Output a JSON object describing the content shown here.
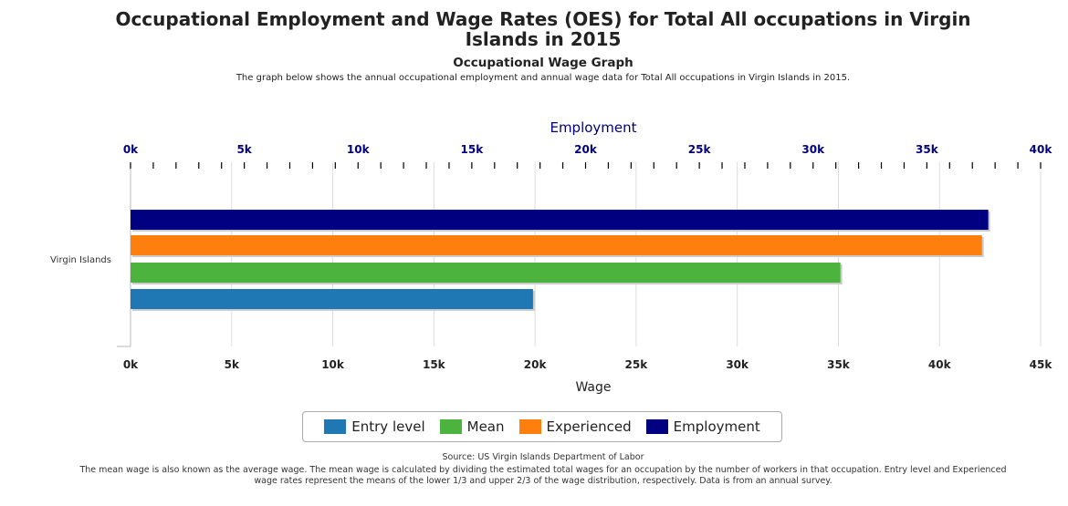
{
  "header": {
    "title_line1": "Occupational Employment and Wage Rates (OES) for Total All occupations in Virgin",
    "title_line2": "Islands in 2015",
    "subtitle": "Occupational Wage Graph",
    "description": "The graph below shows the annual occupational employment and annual wage data for Total All occupations in Virgin Islands in 2015."
  },
  "chart_data": {
    "type": "bar",
    "orientation": "horizontal",
    "categories": [
      "Virgin Islands"
    ],
    "top_axis": {
      "label": "Employment",
      "ticks": [
        "0k",
        "5k",
        "10k",
        "15k",
        "20k",
        "25k",
        "30k",
        "35k",
        "40k"
      ],
      "range": [
        0,
        40000
      ]
    },
    "bottom_axis": {
      "label": "Wage",
      "ticks": [
        "0k",
        "5k",
        "10k",
        "15k",
        "20k",
        "25k",
        "30k",
        "35k",
        "40k",
        "45k"
      ],
      "range": [
        0,
        45000
      ]
    },
    "series": [
      {
        "name": "Employment",
        "axis": "top",
        "color": "#000080",
        "values": [
          37700
        ]
      },
      {
        "name": "Experienced",
        "axis": "bottom",
        "color": "#ff7f0e",
        "values": [
          42100
        ]
      },
      {
        "name": "Mean",
        "axis": "bottom",
        "color": "#4cb33e",
        "values": [
          35100
        ]
      },
      {
        "name": "Entry level",
        "axis": "bottom",
        "color": "#1f77b4",
        "values": [
          19900
        ]
      }
    ],
    "legend_order": [
      "Entry level",
      "Mean",
      "Experienced",
      "Employment"
    ],
    "legend_position": "bottom-center",
    "grid": true
  },
  "legend": {
    "entry_level": "Entry level",
    "mean": "Mean",
    "experienced": "Experienced",
    "employment": "Employment"
  },
  "colors": {
    "entry_level": "#1f77b4",
    "mean": "#4cb33e",
    "experienced": "#ff7f0e",
    "employment": "#000080"
  },
  "footer": {
    "source": "Source: US Virgin Islands Department of Labor",
    "note": "The mean wage is also known as the average wage. The mean wage is calculated by dividing the estimated total wages for an occupation by the number of workers in that occupation. Entry level and Experienced wage rates represent the means of the lower 1/3 and upper 2/3 of the wage distribution, respectively. Data is from an annual survey."
  }
}
